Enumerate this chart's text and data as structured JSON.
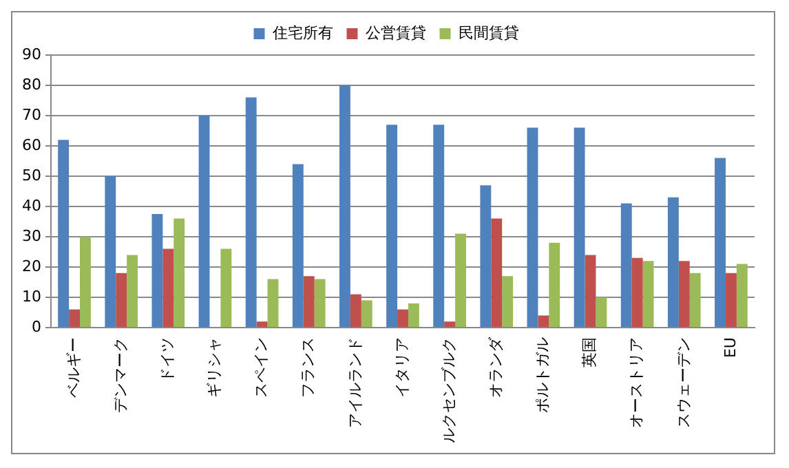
{
  "chart_data": {
    "type": "bar",
    "categories": [
      "ベルギー",
      "デンマーク",
      "ドイツ",
      "ギリシャ",
      "スペイン",
      "フランス",
      "アイルランド",
      "イタリア",
      "ルクセンブルク",
      "オランダ",
      "ポルトガル",
      "英国",
      "オーストリア",
      "スウェーデン",
      "EU"
    ],
    "series": [
      {
        "name": "住宅所有",
        "color": "#4f81bd",
        "values": [
          62,
          50,
          37.5,
          70,
          76,
          54,
          80,
          67,
          67,
          47,
          66,
          66,
          41,
          43,
          56
        ]
      },
      {
        "name": "公営賃貸",
        "color": "#c0504d",
        "values": [
          6,
          18,
          26,
          null,
          2,
          17,
          11,
          6,
          2,
          36,
          4,
          24,
          23,
          22,
          18
        ]
      },
      {
        "name": "民間賃貸",
        "color": "#9bbb59",
        "values": [
          30,
          24,
          36,
          26,
          16,
          16,
          9,
          8,
          31,
          17,
          28,
          10,
          22,
          18,
          21
        ]
      }
    ],
    "ylim": [
      0,
      90
    ],
    "yticks": [
      0,
      10,
      20,
      30,
      40,
      50,
      60,
      70,
      80,
      90
    ],
    "grid": "y",
    "legend": "top"
  }
}
